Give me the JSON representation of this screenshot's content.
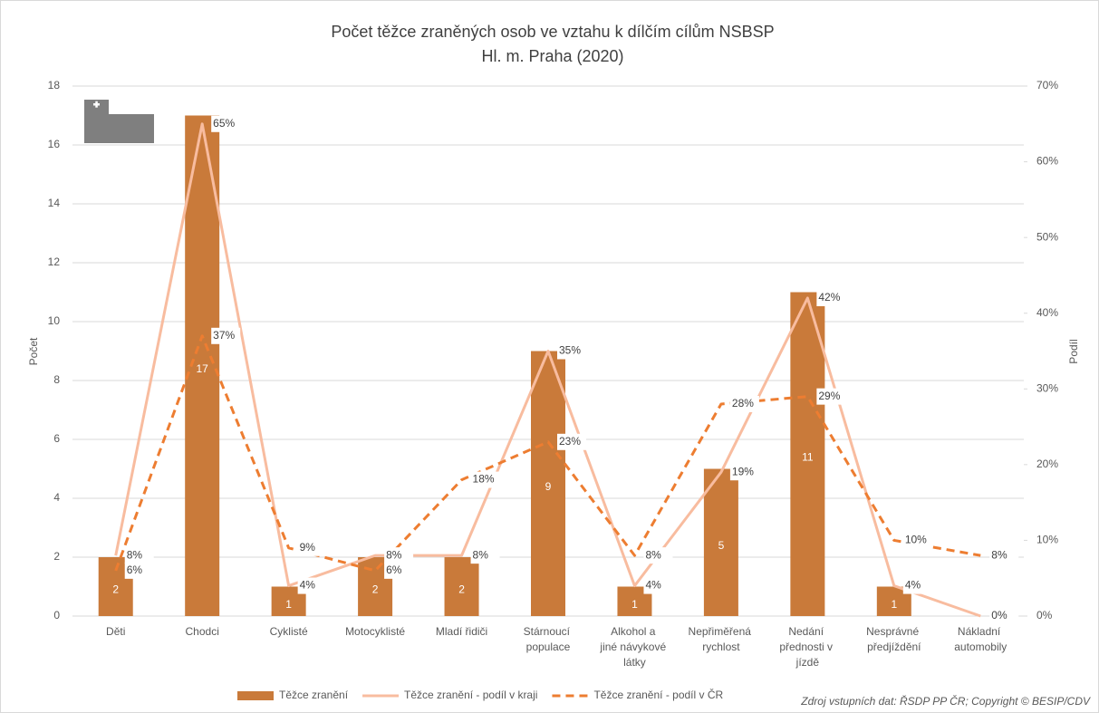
{
  "chart_data": {
    "type": "bar_line",
    "title": "Počet těžce zraněných osob ve vztahu k dílčím cílům NSBSP",
    "subtitle": "Hl. m. Praha (2020)",
    "y_label": "Počet",
    "y2_label": "Podíl",
    "source": "Zdroj vstupních dat: ŘSDP PP ČR; Copyright © BESIP/CDV",
    "categories": [
      "Děti",
      "Chodci",
      "Cyklisté",
      "Motocyklisté",
      "Mladí řidiči",
      "Stárnoucí populace",
      "Alkohol a jiné návykové látky",
      "Nepřiměřená rychlost",
      "Nedání přednosti v jízdě",
      "Nesprávné předjíždění",
      "Nákladní automobily"
    ],
    "series": [
      {
        "name": "Těžce zranění",
        "kind": "bar",
        "color": "#c97a3a",
        "values": [
          2,
          17,
          1,
          2,
          2,
          9,
          1,
          5,
          11,
          1,
          null
        ]
      },
      {
        "name": "Těžce zranění - podíl v kraji",
        "kind": "line",
        "axis": "y2",
        "color": "#f8bc9f",
        "dashed": false,
        "values": [
          8,
          65,
          4,
          8,
          8,
          35,
          4,
          19,
          42,
          4,
          0
        ],
        "value_labels": [
          "8%",
          "65%",
          "4%",
          "8%",
          "8%",
          "35%",
          "4%",
          "19%",
          "42%",
          "4%",
          "0%"
        ]
      },
      {
        "name": "Těžce zranění - podíl v ČR",
        "kind": "line",
        "axis": "y2",
        "color": "#ed7d31",
        "dashed": true,
        "values": [
          6,
          37,
          9,
          6,
          18,
          23,
          8,
          28,
          29,
          10,
          8
        ],
        "value_labels": [
          "6%",
          "37%",
          "9%",
          "6%",
          "18%",
          "23%",
          "8%",
          "28%",
          "29%",
          "10%",
          "8%"
        ]
      }
    ],
    "ylim": [
      0,
      18
    ],
    "yticks": [
      0,
      2,
      4,
      6,
      8,
      10,
      12,
      14,
      16,
      18
    ],
    "y2lim": [
      0,
      70
    ],
    "y2ticks": [
      {
        "value": 0,
        "label": "0%"
      },
      {
        "value": 10,
        "label": "10%"
      },
      {
        "value": 20,
        "label": "20%"
      },
      {
        "value": 30,
        "label": "30%"
      },
      {
        "value": 40,
        "label": "40%"
      },
      {
        "value": 50,
        "label": "50%"
      },
      {
        "value": 60,
        "label": "60%"
      },
      {
        "value": 70,
        "label": "70%"
      }
    ],
    "grid": true,
    "legend": "bottom"
  }
}
